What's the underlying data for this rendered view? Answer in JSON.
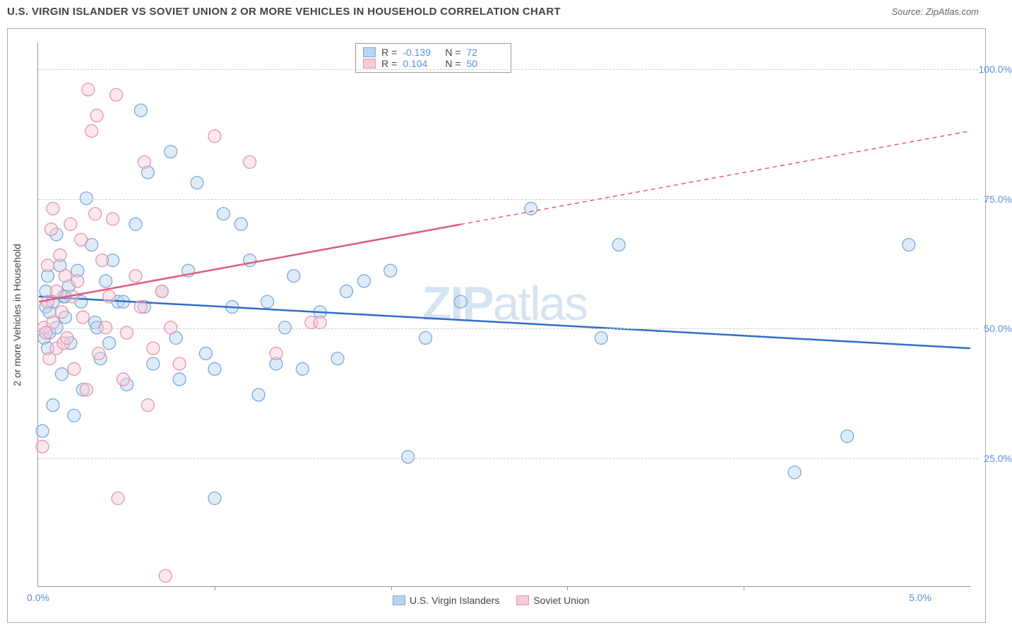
{
  "title": "U.S. VIRGIN ISLANDER VS SOVIET UNION 2 OR MORE VEHICLES IN HOUSEHOLD CORRELATION CHART",
  "source": "Source: ZipAtlas.com",
  "watermark_a": "ZIP",
  "watermark_b": "atlas",
  "chart": {
    "type": "scatter",
    "ylabel": "2 or more Vehicles in Household",
    "xlim": [
      0,
      5.3
    ],
    "ylim": [
      0,
      105
    ],
    "xtick_labels": {
      "0": "0.0%",
      "5": "5.0%"
    },
    "xtick_minor": [
      1,
      2,
      3,
      4
    ],
    "ytick_labels": {
      "25": "25.0%",
      "50": "50.0%",
      "75": "75.0%",
      "100": "100.0%"
    },
    "background_color": "#ffffff",
    "grid_color": "#cccccc",
    "axis_color": "#999999",
    "marker_radius": 9,
    "marker_opacity": 0.45,
    "line_width": 2.5,
    "series": [
      {
        "name": "U.S. Virgin Islanders",
        "color_fill": "#b9d4f0",
        "color_stroke": "#7aa8da",
        "line_color": "#2f6fc7",
        "R": "-0.139",
        "N": "72",
        "trend": {
          "x1": 0,
          "y1": 56,
          "x2": 5.3,
          "y2": 46,
          "solid_to_x": 5.3
        },
        "points": [
          [
            0.02,
            30
          ],
          [
            0.03,
            48
          ],
          [
            0.04,
            54
          ],
          [
            0.04,
            57
          ],
          [
            0.05,
            46
          ],
          [
            0.05,
            60
          ],
          [
            0.06,
            49
          ],
          [
            0.06,
            53
          ],
          [
            0.08,
            55
          ],
          [
            0.08,
            35
          ],
          [
            0.1,
            50
          ],
          [
            0.1,
            68
          ],
          [
            0.12,
            62
          ],
          [
            0.13,
            41
          ],
          [
            0.14,
            56
          ],
          [
            0.15,
            52
          ],
          [
            0.17,
            58
          ],
          [
            0.18,
            47
          ],
          [
            0.2,
            33
          ],
          [
            0.22,
            61
          ],
          [
            0.24,
            55
          ],
          [
            0.25,
            38
          ],
          [
            0.27,
            75
          ],
          [
            0.3,
            66
          ],
          [
            0.32,
            51
          ],
          [
            0.35,
            44
          ],
          [
            0.38,
            59
          ],
          [
            0.4,
            47
          ],
          [
            0.42,
            63
          ],
          [
            0.45,
            55
          ],
          [
            0.5,
            39
          ],
          [
            0.55,
            70
          ],
          [
            0.58,
            92
          ],
          [
            0.6,
            54
          ],
          [
            0.62,
            80
          ],
          [
            0.65,
            43
          ],
          [
            0.7,
            57
          ],
          [
            0.75,
            84
          ],
          [
            0.78,
            48
          ],
          [
            0.8,
            40
          ],
          [
            0.85,
            61
          ],
          [
            0.9,
            78
          ],
          [
            0.95,
            45
          ],
          [
            1.0,
            17
          ],
          [
            1.0,
            42
          ],
          [
            1.05,
            72
          ],
          [
            1.1,
            54
          ],
          [
            1.15,
            70
          ],
          [
            1.2,
            63
          ],
          [
            1.25,
            37
          ],
          [
            1.3,
            55
          ],
          [
            1.35,
            43
          ],
          [
            1.4,
            50
          ],
          [
            1.45,
            60
          ],
          [
            1.5,
            42
          ],
          [
            1.6,
            53
          ],
          [
            1.7,
            44
          ],
          [
            1.75,
            57
          ],
          [
            1.85,
            59
          ],
          [
            2.0,
            61
          ],
          [
            2.1,
            25
          ],
          [
            2.2,
            48
          ],
          [
            2.4,
            55
          ],
          [
            2.8,
            73
          ],
          [
            3.2,
            48
          ],
          [
            3.3,
            66
          ],
          [
            4.3,
            22
          ],
          [
            4.6,
            29
          ],
          [
            4.95,
            66
          ],
          [
            0.15,
            56
          ],
          [
            0.33,
            50
          ],
          [
            0.48,
            55
          ]
        ]
      },
      {
        "name": "Soviet Union",
        "color_fill": "#f6cdd7",
        "color_stroke": "#e594ab",
        "line_color": "#e05a80",
        "R": "0.104",
        "N": "50",
        "trend": {
          "x1": 0,
          "y1": 55,
          "x2": 5.3,
          "y2": 88,
          "solid_to_x": 2.4
        },
        "points": [
          [
            0.02,
            27
          ],
          [
            0.03,
            50
          ],
          [
            0.04,
            49
          ],
          [
            0.05,
            55
          ],
          [
            0.05,
            62
          ],
          [
            0.06,
            44
          ],
          [
            0.07,
            69
          ],
          [
            0.08,
            73
          ],
          [
            0.08,
            51
          ],
          [
            0.1,
            46
          ],
          [
            0.1,
            57
          ],
          [
            0.12,
            64
          ],
          [
            0.13,
            53
          ],
          [
            0.14,
            47
          ],
          [
            0.15,
            60
          ],
          [
            0.16,
            48
          ],
          [
            0.18,
            70
          ],
          [
            0.19,
            56
          ],
          [
            0.2,
            42
          ],
          [
            0.22,
            59
          ],
          [
            0.24,
            67
          ],
          [
            0.25,
            52
          ],
          [
            0.27,
            38
          ],
          [
            0.28,
            96
          ],
          [
            0.3,
            88
          ],
          [
            0.32,
            72
          ],
          [
            0.33,
            91
          ],
          [
            0.34,
            45
          ],
          [
            0.36,
            63
          ],
          [
            0.38,
            50
          ],
          [
            0.4,
            56
          ],
          [
            0.42,
            71
          ],
          [
            0.44,
            95
          ],
          [
            0.45,
            17
          ],
          [
            0.48,
            40
          ],
          [
            0.5,
            49
          ],
          [
            0.55,
            60
          ],
          [
            0.58,
            54
          ],
          [
            0.6,
            82
          ],
          [
            0.62,
            35
          ],
          [
            0.65,
            46
          ],
          [
            0.7,
            57
          ],
          [
            0.72,
            2
          ],
          [
            0.75,
            50
          ],
          [
            0.8,
            43
          ],
          [
            1.0,
            87
          ],
          [
            1.2,
            82
          ],
          [
            1.35,
            45
          ],
          [
            1.55,
            51
          ],
          [
            1.6,
            51
          ]
        ]
      }
    ]
  },
  "legend_top": {
    "r_label": "R =",
    "n_label": "N ="
  },
  "legend_bottom": [
    {
      "label": "U.S. Virgin Islanders",
      "fill": "#b9d4f0",
      "stroke": "#7aa8da"
    },
    {
      "label": "Soviet Union",
      "fill": "#f6cdd7",
      "stroke": "#e594ab"
    }
  ]
}
